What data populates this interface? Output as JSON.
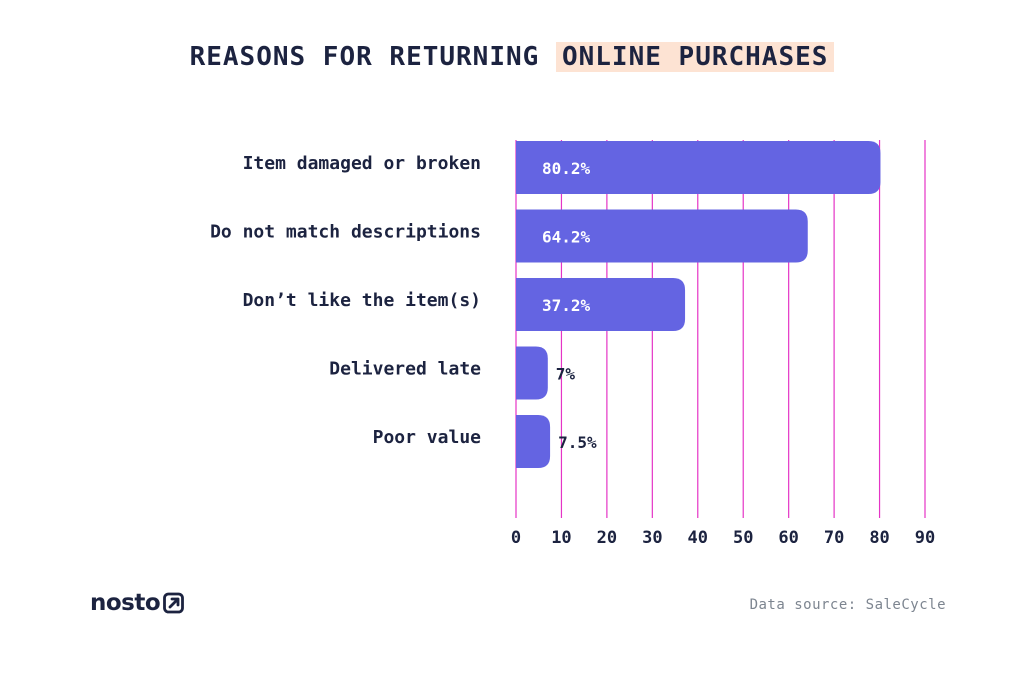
{
  "title": {
    "part1": "REASONS FOR RETURNING",
    "part2": "ONLINE PURCHASES"
  },
  "colors": {
    "bar": "#6464e2",
    "grid": "#e534c6",
    "text": "#1c2340",
    "highlight": "#fde3d3",
    "source": "#7d8590"
  },
  "chart_data": {
    "type": "bar",
    "orientation": "horizontal",
    "categories": [
      "Item damaged or broken",
      "Do not match descriptions",
      "Don’t like the item(s)",
      "Delivered late",
      "Poor value"
    ],
    "values": [
      80.2,
      64.2,
      37.2,
      7,
      7.5
    ],
    "value_labels": [
      "80.2%",
      "64.2%",
      "37.2%",
      "7%",
      "7.5%"
    ],
    "xlim": [
      0,
      90
    ],
    "xticks": [
      0,
      10,
      20,
      30,
      40,
      50,
      60,
      70,
      80,
      90
    ],
    "grid": true
  },
  "footer": {
    "logo": "nosto",
    "logo_icon": "arrow-box-icon",
    "source": "Data source: SaleCycle"
  }
}
